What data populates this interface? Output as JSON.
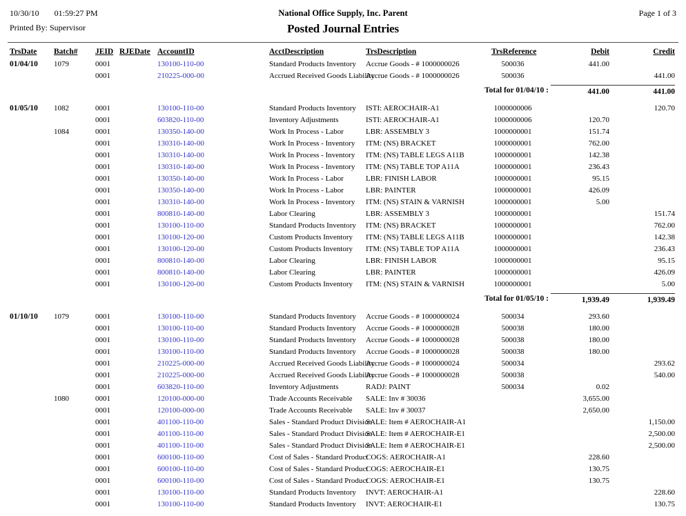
{
  "page": {
    "printed_date": "10/30/10",
    "printed_time": "01:59:27 PM",
    "printed_by": "Printed By: Supervisor",
    "company": "National Office Supply, Inc. Parent",
    "title": "Posted Journal Entries",
    "page_label": "Page 1 of 3"
  },
  "columns": [
    "TrsDate",
    "Batch#",
    "JEID",
    "RJEDate",
    "AccountID",
    "AcctDescription",
    "TrsDescription",
    "TrsReference",
    "Debit",
    "Credit"
  ],
  "link_color": "#3333CC",
  "groups": [
    {
      "rows": [
        {
          "date": "01/04/10",
          "batch": "1079",
          "jeid": "0001",
          "rjedate": "",
          "account": "130100-110-00",
          "acct_desc": "Standard Products Inventory",
          "trs_desc": "Accrue Goods - # 1000000026",
          "trs_ref": "500036",
          "debit": "441.00",
          "credit": ""
        },
        {
          "date": "",
          "batch": "",
          "jeid": "0001",
          "rjedate": "",
          "account": "210225-000-00",
          "acct_desc": "Accrued Received Goods Liability",
          "trs_desc": "Accrue Goods - # 1000000026",
          "trs_ref": "500036",
          "debit": "",
          "credit": "441.00"
        }
      ],
      "total": {
        "label": "Total for 01/04/10 :",
        "debit": "441.00",
        "credit": "441.00"
      }
    },
    {
      "rows": [
        {
          "date": "01/05/10",
          "batch": "1082",
          "jeid": "0001",
          "rjedate": "",
          "account": "130100-110-00",
          "acct_desc": "Standard Products Inventory",
          "trs_desc": "ISTI: AEROCHAIR-A1",
          "trs_ref": "1000000006",
          "debit": "",
          "credit": "120.70"
        },
        {
          "date": "",
          "batch": "",
          "jeid": "0001",
          "rjedate": "",
          "account": "603820-110-00",
          "acct_desc": "Inventory Adjustments",
          "trs_desc": "ISTI: AEROCHAIR-A1",
          "trs_ref": "1000000006",
          "debit": "120.70",
          "credit": ""
        },
        {
          "date": "",
          "batch": "1084",
          "jeid": "0001",
          "rjedate": "",
          "account": "130350-140-00",
          "acct_desc": "Work In Process - Labor",
          "trs_desc": "LBR: ASSEMBLY 3",
          "trs_ref": "1000000001",
          "debit": "151.74",
          "credit": ""
        },
        {
          "date": "",
          "batch": "",
          "jeid": "0001",
          "rjedate": "",
          "account": "130310-140-00",
          "acct_desc": "Work In Process - Inventory",
          "trs_desc": "ITM: (NS) BRACKET",
          "trs_ref": "1000000001",
          "debit": "762.00",
          "credit": ""
        },
        {
          "date": "",
          "batch": "",
          "jeid": "0001",
          "rjedate": "",
          "account": "130310-140-00",
          "acct_desc": "Work In Process - Inventory",
          "trs_desc": "ITM: (NS) TABLE LEGS A11B",
          "trs_ref": "1000000001",
          "debit": "142.38",
          "credit": ""
        },
        {
          "date": "",
          "batch": "",
          "jeid": "0001",
          "rjedate": "",
          "account": "130310-140-00",
          "acct_desc": "Work In Process - Inventory",
          "trs_desc": "ITM: (NS) TABLE TOP A11A",
          "trs_ref": "1000000001",
          "debit": "236.43",
          "credit": ""
        },
        {
          "date": "",
          "batch": "",
          "jeid": "0001",
          "rjedate": "",
          "account": "130350-140-00",
          "acct_desc": "Work In Process - Labor",
          "trs_desc": "LBR: FINISH LABOR",
          "trs_ref": "1000000001",
          "debit": "95.15",
          "credit": ""
        },
        {
          "date": "",
          "batch": "",
          "jeid": "0001",
          "rjedate": "",
          "account": "130350-140-00",
          "acct_desc": "Work In Process - Labor",
          "trs_desc": "LBR: PAINTER",
          "trs_ref": "1000000001",
          "debit": "426.09",
          "credit": ""
        },
        {
          "date": "",
          "batch": "",
          "jeid": "0001",
          "rjedate": "",
          "account": "130310-140-00",
          "acct_desc": "Work In Process - Inventory",
          "trs_desc": "ITM: (NS) STAIN & VARNISH",
          "trs_ref": "1000000001",
          "debit": "5.00",
          "credit": ""
        },
        {
          "date": "",
          "batch": "",
          "jeid": "0001",
          "rjedate": "",
          "account": "800810-140-00",
          "acct_desc": "Labor Clearing",
          "trs_desc": "LBR: ASSEMBLY 3",
          "trs_ref": "1000000001",
          "debit": "",
          "credit": "151.74"
        },
        {
          "date": "",
          "batch": "",
          "jeid": "0001",
          "rjedate": "",
          "account": "130100-110-00",
          "acct_desc": "Standard Products Inventory",
          "trs_desc": "ITM: (NS) BRACKET",
          "trs_ref": "1000000001",
          "debit": "",
          "credit": "762.00"
        },
        {
          "date": "",
          "batch": "",
          "jeid": "0001",
          "rjedate": "",
          "account": "130100-120-00",
          "acct_desc": "Custom Products Inventory",
          "trs_desc": "ITM: (NS) TABLE LEGS A11B",
          "trs_ref": "1000000001",
          "debit": "",
          "credit": "142.38"
        },
        {
          "date": "",
          "batch": "",
          "jeid": "0001",
          "rjedate": "",
          "account": "130100-120-00",
          "acct_desc": "Custom Products Inventory",
          "trs_desc": "ITM: (NS) TABLE TOP A11A",
          "trs_ref": "1000000001",
          "debit": "",
          "credit": "236.43"
        },
        {
          "date": "",
          "batch": "",
          "jeid": "0001",
          "rjedate": "",
          "account": "800810-140-00",
          "acct_desc": "Labor Clearing",
          "trs_desc": "LBR: FINISH LABOR",
          "trs_ref": "1000000001",
          "debit": "",
          "credit": "95.15"
        },
        {
          "date": "",
          "batch": "",
          "jeid": "0001",
          "rjedate": "",
          "account": "800810-140-00",
          "acct_desc": "Labor Clearing",
          "trs_desc": "LBR: PAINTER",
          "trs_ref": "1000000001",
          "debit": "",
          "credit": "426.09"
        },
        {
          "date": "",
          "batch": "",
          "jeid": "0001",
          "rjedate": "",
          "account": "130100-120-00",
          "acct_desc": "Custom Products Inventory",
          "trs_desc": "ITM: (NS) STAIN & VARNISH",
          "trs_ref": "1000000001",
          "debit": "",
          "credit": "5.00"
        }
      ],
      "total": {
        "label": "Total for 01/05/10 :",
        "debit": "1,939.49",
        "credit": "1,939.49"
      }
    },
    {
      "rows": [
        {
          "date": "01/10/10",
          "batch": "1079",
          "jeid": "0001",
          "rjedate": "",
          "account": "130100-110-00",
          "acct_desc": "Standard Products Inventory",
          "trs_desc": "Accrue Goods - # 1000000024",
          "trs_ref": "500034",
          "debit": "293.60",
          "credit": ""
        },
        {
          "date": "",
          "batch": "",
          "jeid": "0001",
          "rjedate": "",
          "account": "130100-110-00",
          "acct_desc": "Standard Products Inventory",
          "trs_desc": "Accrue Goods - # 1000000028",
          "trs_ref": "500038",
          "debit": "180.00",
          "credit": ""
        },
        {
          "date": "",
          "batch": "",
          "jeid": "0001",
          "rjedate": "",
          "account": "130100-110-00",
          "acct_desc": "Standard Products Inventory",
          "trs_desc": "Accrue Goods - # 1000000028",
          "trs_ref": "500038",
          "debit": "180.00",
          "credit": ""
        },
        {
          "date": "",
          "batch": "",
          "jeid": "0001",
          "rjedate": "",
          "account": "130100-110-00",
          "acct_desc": "Standard Products Inventory",
          "trs_desc": "Accrue Goods - # 1000000028",
          "trs_ref": "500038",
          "debit": "180.00",
          "credit": ""
        },
        {
          "date": "",
          "batch": "",
          "jeid": "0001",
          "rjedate": "",
          "account": "210225-000-00",
          "acct_desc": "Accrued Received Goods Liability",
          "trs_desc": "Accrue Goods - # 1000000024",
          "trs_ref": "500034",
          "debit": "",
          "credit": "293.62"
        },
        {
          "date": "",
          "batch": "",
          "jeid": "0001",
          "rjedate": "",
          "account": "210225-000-00",
          "acct_desc": "Accrued Received Goods Liability",
          "trs_desc": "Accrue Goods - # 1000000028",
          "trs_ref": "500038",
          "debit": "",
          "credit": "540.00"
        },
        {
          "date": "",
          "batch": "",
          "jeid": "0001",
          "rjedate": "",
          "account": "603820-110-00",
          "acct_desc": "Inventory Adjustments",
          "trs_desc": "RADJ: PAINT",
          "trs_ref": "500034",
          "debit": "0.02",
          "credit": ""
        },
        {
          "date": "",
          "batch": "1080",
          "jeid": "0001",
          "rjedate": "",
          "account": "120100-000-00",
          "acct_desc": "Trade Accounts Receivable",
          "trs_desc": "SALE: Inv #  30036",
          "trs_ref": "",
          "debit": "3,655.00",
          "credit": ""
        },
        {
          "date": "",
          "batch": "",
          "jeid": "0001",
          "rjedate": "",
          "account": "120100-000-00",
          "acct_desc": "Trade Accounts Receivable",
          "trs_desc": "SALE: Inv #  30037",
          "trs_ref": "",
          "debit": "2,650.00",
          "credit": ""
        },
        {
          "date": "",
          "batch": "",
          "jeid": "0001",
          "rjedate": "",
          "account": "401100-110-00",
          "acct_desc": "Sales - Standard Product Division",
          "trs_desc": "SALE: Item # AEROCHAIR-A1",
          "trs_ref": "",
          "debit": "",
          "credit": "1,150.00"
        },
        {
          "date": "",
          "batch": "",
          "jeid": "0001",
          "rjedate": "",
          "account": "401100-110-00",
          "acct_desc": "Sales - Standard Product Division",
          "trs_desc": "SALE: Item # AEROCHAIR-E1",
          "trs_ref": "",
          "debit": "",
          "credit": "2,500.00"
        },
        {
          "date": "",
          "batch": "",
          "jeid": "0001",
          "rjedate": "",
          "account": "401100-110-00",
          "acct_desc": "Sales - Standard Product Division",
          "trs_desc": "SALE: Item # AEROCHAIR-E1",
          "trs_ref": "",
          "debit": "",
          "credit": "2,500.00"
        },
        {
          "date": "",
          "batch": "",
          "jeid": "0001",
          "rjedate": "",
          "account": "600100-110-00",
          "acct_desc": "Cost of Sales - Standard Product",
          "trs_desc": "COGS: AEROCHAIR-A1",
          "trs_ref": "",
          "debit": "228.60",
          "credit": ""
        },
        {
          "date": "",
          "batch": "",
          "jeid": "0001",
          "rjedate": "",
          "account": "600100-110-00",
          "acct_desc": "Cost of Sales - Standard Product",
          "trs_desc": "COGS: AEROCHAIR-E1",
          "trs_ref": "",
          "debit": "130.75",
          "credit": ""
        },
        {
          "date": "",
          "batch": "",
          "jeid": "0001",
          "rjedate": "",
          "account": "600100-110-00",
          "acct_desc": "Cost of Sales - Standard Product",
          "trs_desc": "COGS: AEROCHAIR-E1",
          "trs_ref": "",
          "debit": "130.75",
          "credit": ""
        },
        {
          "date": "",
          "batch": "",
          "jeid": "0001",
          "rjedate": "",
          "account": "130100-110-00",
          "acct_desc": "Standard Products Inventory",
          "trs_desc": "INVT: AEROCHAIR-A1",
          "trs_ref": "",
          "debit": "",
          "credit": "228.60"
        },
        {
          "date": "",
          "batch": "",
          "jeid": "0001",
          "rjedate": "",
          "account": "130100-110-00",
          "acct_desc": "Standard Products Inventory",
          "trs_desc": "INVT: AEROCHAIR-E1",
          "trs_ref": "",
          "debit": "",
          "credit": "130.75"
        }
      ],
      "total": null
    }
  ]
}
